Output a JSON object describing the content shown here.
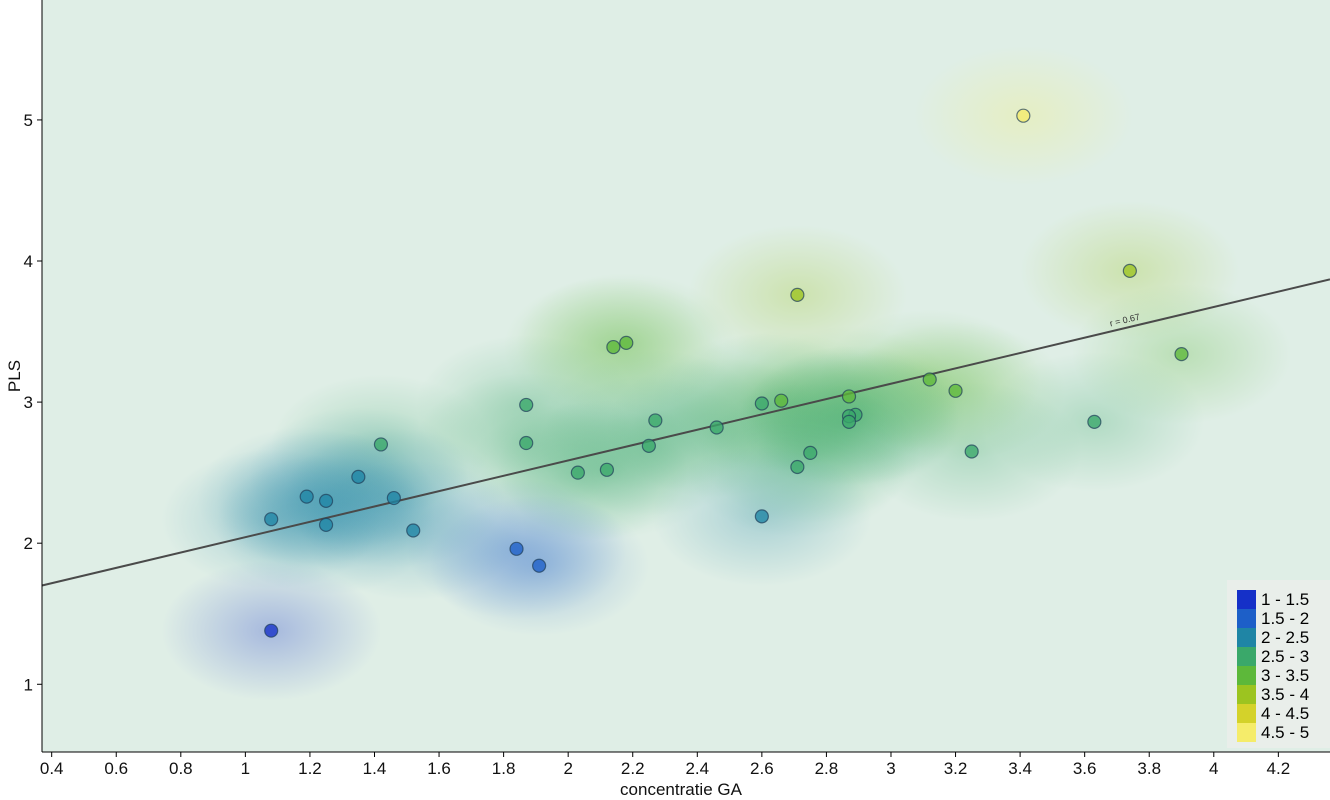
{
  "chart_data": {
    "type": "scatter",
    "xlabel": "concentratie GA",
    "ylabel": "PLS",
    "xlim": [
      0.37,
      4.36
    ],
    "ylim": [
      0.52,
      5.85
    ],
    "xticks": [
      "0.4",
      "0.6",
      "0.8",
      "1",
      "1.2",
      "1.4",
      "1.6",
      "1.8",
      "2",
      "2.2",
      "2.4",
      "2.6",
      "2.8",
      "3",
      "3.2",
      "3.4",
      "3.6",
      "3.8",
      "4",
      "4.2"
    ],
    "xtick_values": [
      0.4,
      0.6,
      0.8,
      1,
      1.2,
      1.4,
      1.6,
      1.8,
      2,
      2.2,
      2.4,
      2.6,
      2.8,
      3,
      3.2,
      3.4,
      3.6,
      3.8,
      4,
      4.2
    ],
    "yticks": [
      "1",
      "2",
      "3",
      "4",
      "5"
    ],
    "ytick_values": [
      1,
      2,
      3,
      4,
      5
    ],
    "grid": false,
    "legend_position": "bottom-right",
    "color_scale": [
      {
        "label": "1 - 1.5",
        "color": "#1530c8"
      },
      {
        "label": "1.5 - 2",
        "color": "#1d5fc8"
      },
      {
        "label": "2 - 2.5",
        "color": "#1f85a5"
      },
      {
        "label": "2.5 - 3",
        "color": "#3aa86a"
      },
      {
        "label": "3 - 3.5",
        "color": "#5db83a"
      },
      {
        "label": "3.5 - 4",
        "color": "#9cc420"
      },
      {
        "label": "4 - 4.5",
        "color": "#d4d22a"
      },
      {
        "label": "4.5 - 5",
        "color": "#f5ec6a"
      }
    ],
    "fit_line": {
      "label": "r = 0.67",
      "x": [
        0.37,
        4.36
      ],
      "y": [
        1.7,
        3.87
      ]
    },
    "points": [
      {
        "x": 3.41,
        "y": 5.03
      },
      {
        "x": 3.74,
        "y": 3.93
      },
      {
        "x": 2.71,
        "y": 3.76
      },
      {
        "x": 3.9,
        "y": 3.34
      },
      {
        "x": 2.18,
        "y": 3.42
      },
      {
        "x": 2.14,
        "y": 3.39
      },
      {
        "x": 3.12,
        "y": 3.16
      },
      {
        "x": 3.2,
        "y": 3.08
      },
      {
        "x": 2.87,
        "y": 3.04
      },
      {
        "x": 2.66,
        "y": 3.01
      },
      {
        "x": 2.6,
        "y": 2.99
      },
      {
        "x": 1.87,
        "y": 2.98
      },
      {
        "x": 2.89,
        "y": 2.91
      },
      {
        "x": 2.87,
        "y": 2.9
      },
      {
        "x": 2.27,
        "y": 2.87
      },
      {
        "x": 2.87,
        "y": 2.86
      },
      {
        "x": 3.63,
        "y": 2.86
      },
      {
        "x": 2.46,
        "y": 2.82
      },
      {
        "x": 1.87,
        "y": 2.71
      },
      {
        "x": 1.42,
        "y": 2.7
      },
      {
        "x": 2.25,
        "y": 2.69
      },
      {
        "x": 3.25,
        "y": 2.65
      },
      {
        "x": 2.75,
        "y": 2.64
      },
      {
        "x": 2.71,
        "y": 2.54
      },
      {
        "x": 2.12,
        "y": 2.52
      },
      {
        "x": 2.03,
        "y": 2.5
      },
      {
        "x": 1.35,
        "y": 2.47
      },
      {
        "x": 1.19,
        "y": 2.33
      },
      {
        "x": 1.46,
        "y": 2.32
      },
      {
        "x": 1.25,
        "y": 2.3
      },
      {
        "x": 2.6,
        "y": 2.19
      },
      {
        "x": 1.08,
        "y": 2.17
      },
      {
        "x": 1.25,
        "y": 2.13
      },
      {
        "x": 1.52,
        "y": 2.09
      },
      {
        "x": 1.84,
        "y": 1.96
      },
      {
        "x": 1.91,
        "y": 1.84
      },
      {
        "x": 1.08,
        "y": 1.38
      }
    ]
  }
}
